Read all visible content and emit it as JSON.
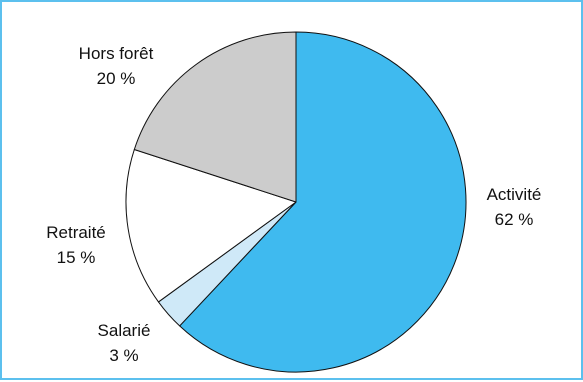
{
  "chart_data": {
    "type": "pie",
    "categories": [
      "Activité",
      "Salarié",
      "Retraité",
      "Hors forêt"
    ],
    "values": [
      62,
      3,
      15,
      20
    ],
    "value_labels": [
      "62 %",
      "3 %",
      "15 %",
      "20 %"
    ],
    "colors": [
      "#3fbaef",
      "#cfe9f8",
      "#ffffff",
      "#cccccc"
    ],
    "start": "top",
    "direction": "clockwise",
    "legend": "none",
    "title": ""
  }
}
